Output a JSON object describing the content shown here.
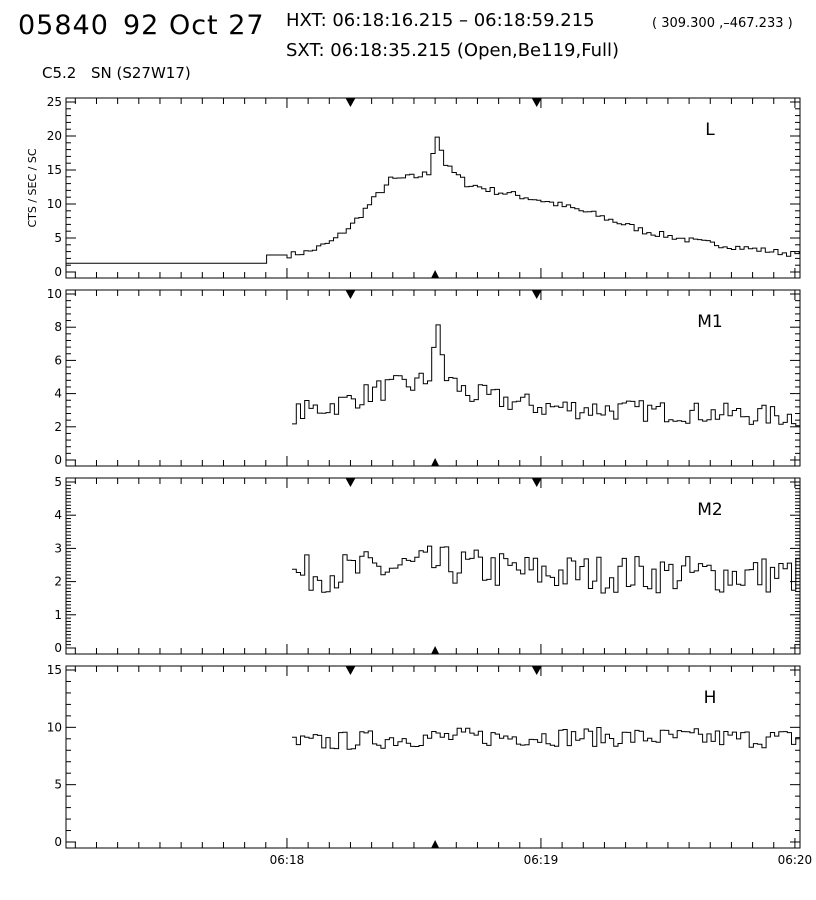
{
  "header": {
    "event_number": "05840",
    "date": "92 Oct 27",
    "hxt_line": "HXT: 06:18:16.215 – 06:18:59.215",
    "position": "( 309.300 ,–467.233 )",
    "sxt_line": "SXT: 06:18:35.215 (Open,Be119,Full)",
    "goes_class": "C5.2",
    "location": "SN (S27W17)"
  },
  "chart_data": {
    "type": "line",
    "style": "step",
    "ylabel": "CTS / SEC / SC",
    "x_tick_labels": [
      "06:18",
      "06:19",
      "06:20"
    ],
    "x_range_minutes": [
      17.13,
      20.02
    ],
    "series_color": "#000000",
    "marker_times": {
      "top": [
        "06:18:15",
        "06:18:59"
      ],
      "bottom": [
        "06:18:35"
      ]
    },
    "panels": [
      {
        "name": "L",
        "ylim": [
          0,
          25
        ],
        "ytick_labels": [
          "0",
          "5",
          "10",
          "15",
          "20",
          "25"
        ],
        "pre_flare_level": [
          {
            "x": 17.13,
            "y": 1.3
          },
          {
            "x": 17.92,
            "y": 1.3
          },
          {
            "x": 17.92,
            "y": 2.5
          },
          {
            "x": 18.0,
            "y": 2.5
          }
        ],
        "keypoints": [
          {
            "x": 18.0,
            "y": 2.5
          },
          {
            "x": 18.08,
            "y": 3.0
          },
          {
            "x": 18.17,
            "y": 4.5
          },
          {
            "x": 18.25,
            "y": 7.0
          },
          {
            "x": 18.33,
            "y": 10.5
          },
          {
            "x": 18.4,
            "y": 13.5
          },
          {
            "x": 18.5,
            "y": 14.0
          },
          {
            "x": 18.55,
            "y": 14.5
          },
          {
            "x": 18.58,
            "y": 20.5
          },
          {
            "x": 18.62,
            "y": 15.5
          },
          {
            "x": 18.7,
            "y": 13.0
          },
          {
            "x": 18.8,
            "y": 12.0
          },
          {
            "x": 19.0,
            "y": 10.5
          },
          {
            "x": 19.2,
            "y": 8.5
          },
          {
            "x": 19.4,
            "y": 6.0
          },
          {
            "x": 19.6,
            "y": 4.5
          },
          {
            "x": 19.8,
            "y": 3.5
          },
          {
            "x": 20.02,
            "y": 2.5
          }
        ],
        "noise": 0.4
      },
      {
        "name": "M1",
        "ylim": [
          0,
          10
        ],
        "ytick_labels": [
          "0",
          "2",
          "4",
          "6",
          "8",
          "10"
        ],
        "keypoints": [
          {
            "x": 18.02,
            "y": 2.8
          },
          {
            "x": 18.2,
            "y": 3.4
          },
          {
            "x": 18.35,
            "y": 4.2
          },
          {
            "x": 18.5,
            "y": 4.6
          },
          {
            "x": 18.55,
            "y": 4.8
          },
          {
            "x": 18.58,
            "y": 8.0
          },
          {
            "x": 18.62,
            "y": 5.0
          },
          {
            "x": 18.7,
            "y": 4.0
          },
          {
            "x": 19.0,
            "y": 3.2
          },
          {
            "x": 19.5,
            "y": 2.9
          },
          {
            "x": 20.02,
            "y": 2.6
          }
        ],
        "noise": 0.55
      },
      {
        "name": "M2",
        "ylim": [
          0,
          5
        ],
        "ytick_labels": [
          "0",
          "1",
          "2",
          "3",
          "4",
          "5"
        ],
        "keypoints": [
          {
            "x": 18.02,
            "y": 2.2
          },
          {
            "x": 18.58,
            "y": 2.5
          },
          {
            "x": 19.0,
            "y": 2.25
          },
          {
            "x": 20.02,
            "y": 2.2
          }
        ],
        "noise": 0.45
      },
      {
        "name": "H",
        "ylim": [
          0,
          15
        ],
        "ytick_labels": [
          "0",
          "5",
          "10",
          "15"
        ],
        "keypoints": [
          {
            "x": 18.02,
            "y": 8.6
          },
          {
            "x": 18.5,
            "y": 9.1
          },
          {
            "x": 19.0,
            "y": 9.2
          },
          {
            "x": 20.02,
            "y": 9.0
          }
        ],
        "noise": 0.6
      }
    ]
  }
}
